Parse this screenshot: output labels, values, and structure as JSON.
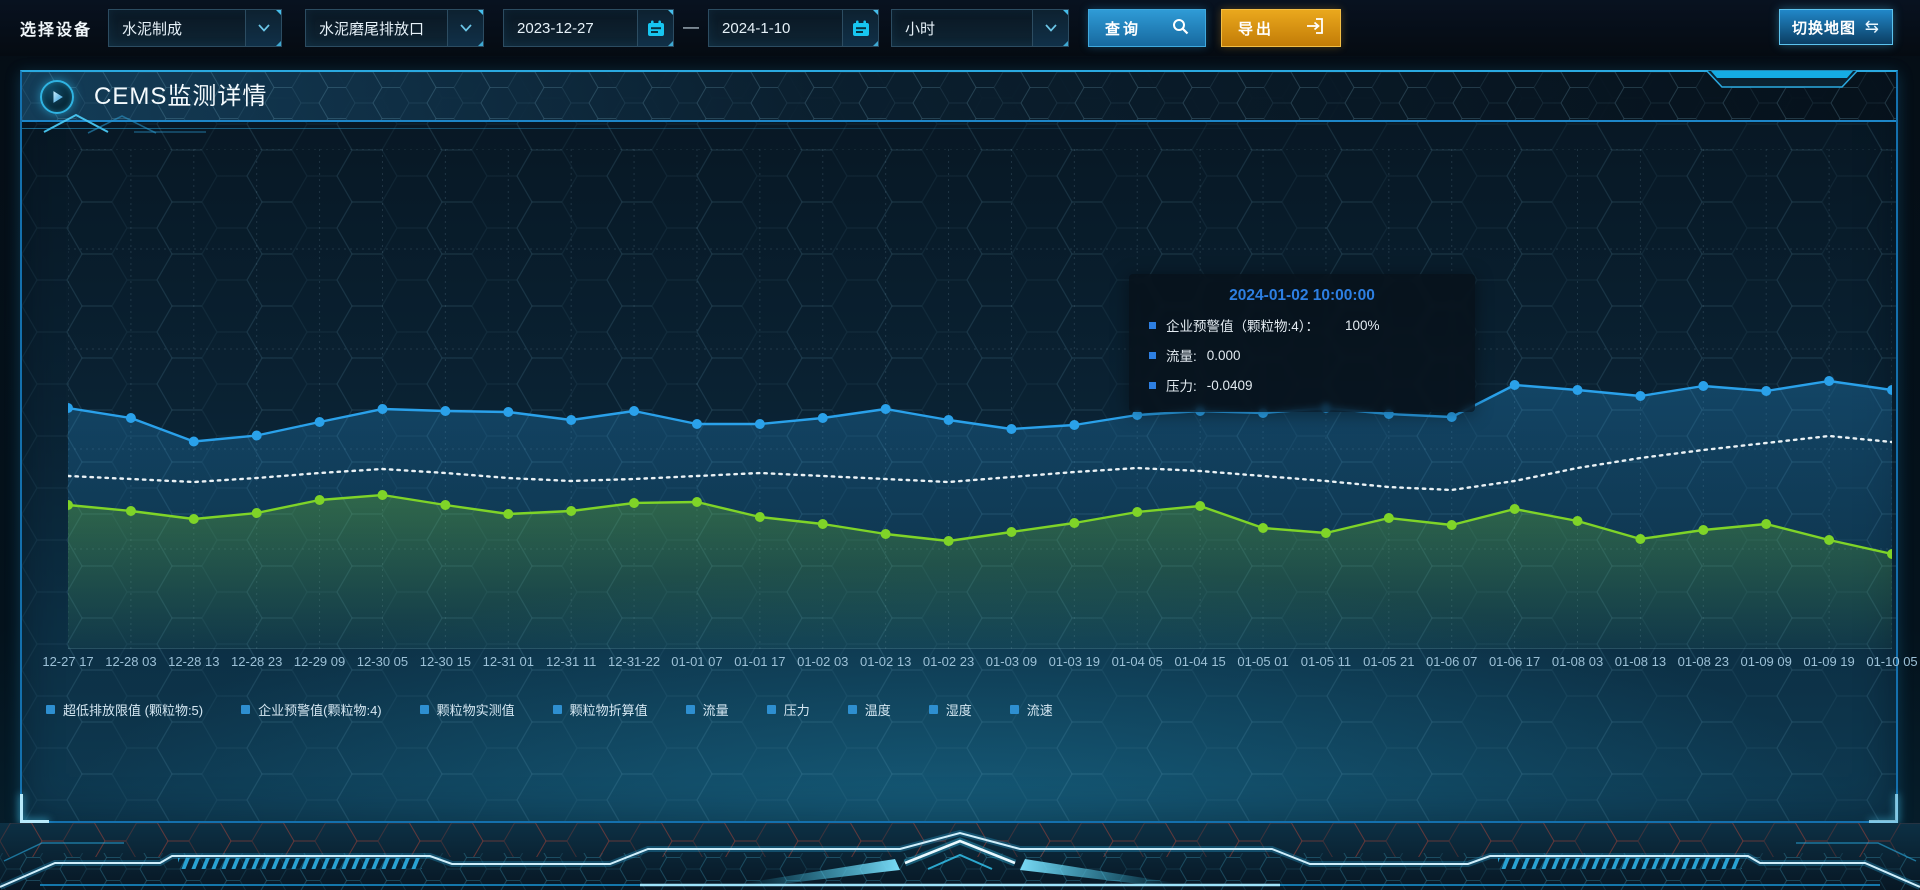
{
  "toolbar": {
    "label": "选择设备",
    "device_select": "水泥制成",
    "outlet_select": "水泥磨尾排放口",
    "date_start": "2023-12-27",
    "date_separator": "—",
    "date_end": "2024-1-10",
    "interval_select": "小时",
    "query_label": "查询",
    "export_label": "导出",
    "switch_map_label": "切换地图",
    "switch_map_icon": "⇆"
  },
  "panel": {
    "title": "CEMS监测详情"
  },
  "tooltip": {
    "title": "2024-01-02 10:00:00",
    "marker_color": "#2d7fe2",
    "rows": [
      {
        "label": "企业预警值（颗粒物:4）：",
        "value": "100%"
      },
      {
        "label": "流量:",
        "value": "0.000"
      },
      {
        "label": "压力:",
        "value": "-0.0409"
      }
    ]
  },
  "legend": {
    "marker_color": "#2e8fd0",
    "items": [
      "超低排放限值 (颗粒物:5)",
      "企业预警值(颗粒物:4)",
      "颗粒物实测值",
      "颗粒物折算值",
      "流量",
      "压力",
      "温度",
      "湿度",
      "流速"
    ]
  },
  "chart_data": {
    "type": "line",
    "title": "",
    "xlabel": "",
    "ylabel": "",
    "ylim": [
      0,
      100
    ],
    "grid": true,
    "legend_position": "bottom",
    "x": [
      "12-27 17",
      "12-28 03",
      "12-28 13",
      "12-28 23",
      "12-29 09",
      "12-30 05",
      "12-30 15",
      "12-31 01",
      "12-31 11",
      "12-31-22",
      "01-01 07",
      "01-01 17",
      "01-02 03",
      "01-02 13",
      "01-02 23",
      "01-03 09",
      "01-03 19",
      "01-04 05",
      "01-04 15",
      "01-05 01",
      "01-05 11",
      "01-05 21",
      "01-06 07",
      "01-06 17",
      "01-08 03",
      "01-08 13",
      "01-08 23",
      "01-09 09",
      "01-09 19",
      "01-10 05"
    ],
    "series": [
      {
        "name": "企业预警值(颗粒物:4)",
        "color": "#2aa1ea",
        "marker": true,
        "area": true,
        "line_style": "solid",
        "values": [
          48.2,
          46.2,
          41.5,
          42.7,
          45.4,
          48.0,
          47.6,
          47.4,
          45.8,
          47.6,
          45.0,
          45.0,
          46.2,
          48.0,
          45.8,
          44.0,
          44.8,
          46.8,
          47.6,
          47.2,
          48.2,
          47.0,
          46.4,
          52.8,
          51.8,
          50.6,
          52.6,
          51.6,
          53.6,
          51.8
        ]
      },
      {
        "name": "流量",
        "color": "#e9f1f5",
        "marker": false,
        "area": false,
        "line_style": "dotted",
        "values": [
          34.6,
          34.0,
          33.4,
          34.2,
          35.2,
          36.0,
          35.2,
          34.2,
          33.6,
          34.0,
          34.6,
          35.2,
          34.6,
          34.0,
          33.4,
          34.4,
          35.4,
          36.2,
          35.6,
          34.6,
          33.6,
          32.4,
          31.8,
          33.6,
          36.2,
          38.2,
          39.8,
          41.2,
          42.6,
          41.4
        ]
      },
      {
        "name": "压力",
        "color": "#7fd428",
        "marker": true,
        "area": true,
        "line_style": "solid",
        "values": [
          28.8,
          27.6,
          26.0,
          27.2,
          29.8,
          30.8,
          28.8,
          27.0,
          27.6,
          29.2,
          29.4,
          26.4,
          25.0,
          23.0,
          21.6,
          23.4,
          25.2,
          27.4,
          28.6,
          24.2,
          23.2,
          26.2,
          24.8,
          28.0,
          25.6,
          22.0,
          23.8,
          25.0,
          21.8,
          19.0
        ]
      }
    ]
  }
}
